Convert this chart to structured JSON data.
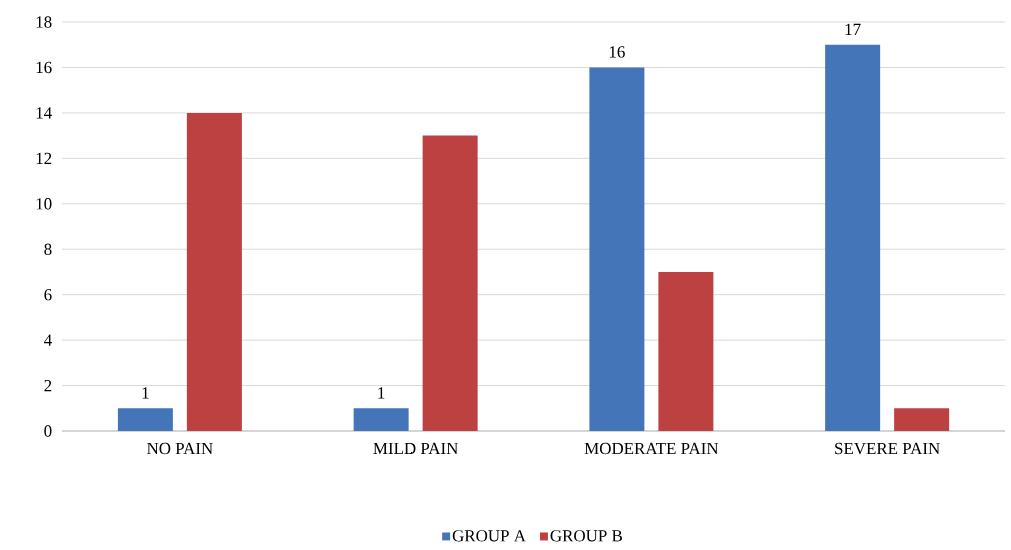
{
  "chart_data": {
    "type": "bar",
    "categories": [
      "NO PAIN",
      "MILD PAIN",
      "MODERATE PAIN",
      "SEVERE PAIN"
    ],
    "series": [
      {
        "name": "GROUP A",
        "color": "#4575b9",
        "values": [
          1,
          1,
          16,
          17
        ],
        "value_labels": [
          "1",
          "1",
          "16",
          "17"
        ]
      },
      {
        "name": "GROUP B",
        "color": "#bc4140",
        "values": [
          14,
          13,
          7,
          1
        ]
      }
    ],
    "ylim": [
      0,
      18
    ],
    "yticks": [
      0,
      2,
      4,
      6,
      8,
      10,
      12,
      14,
      16,
      18
    ],
    "grid": "y",
    "legend": "bottom"
  }
}
